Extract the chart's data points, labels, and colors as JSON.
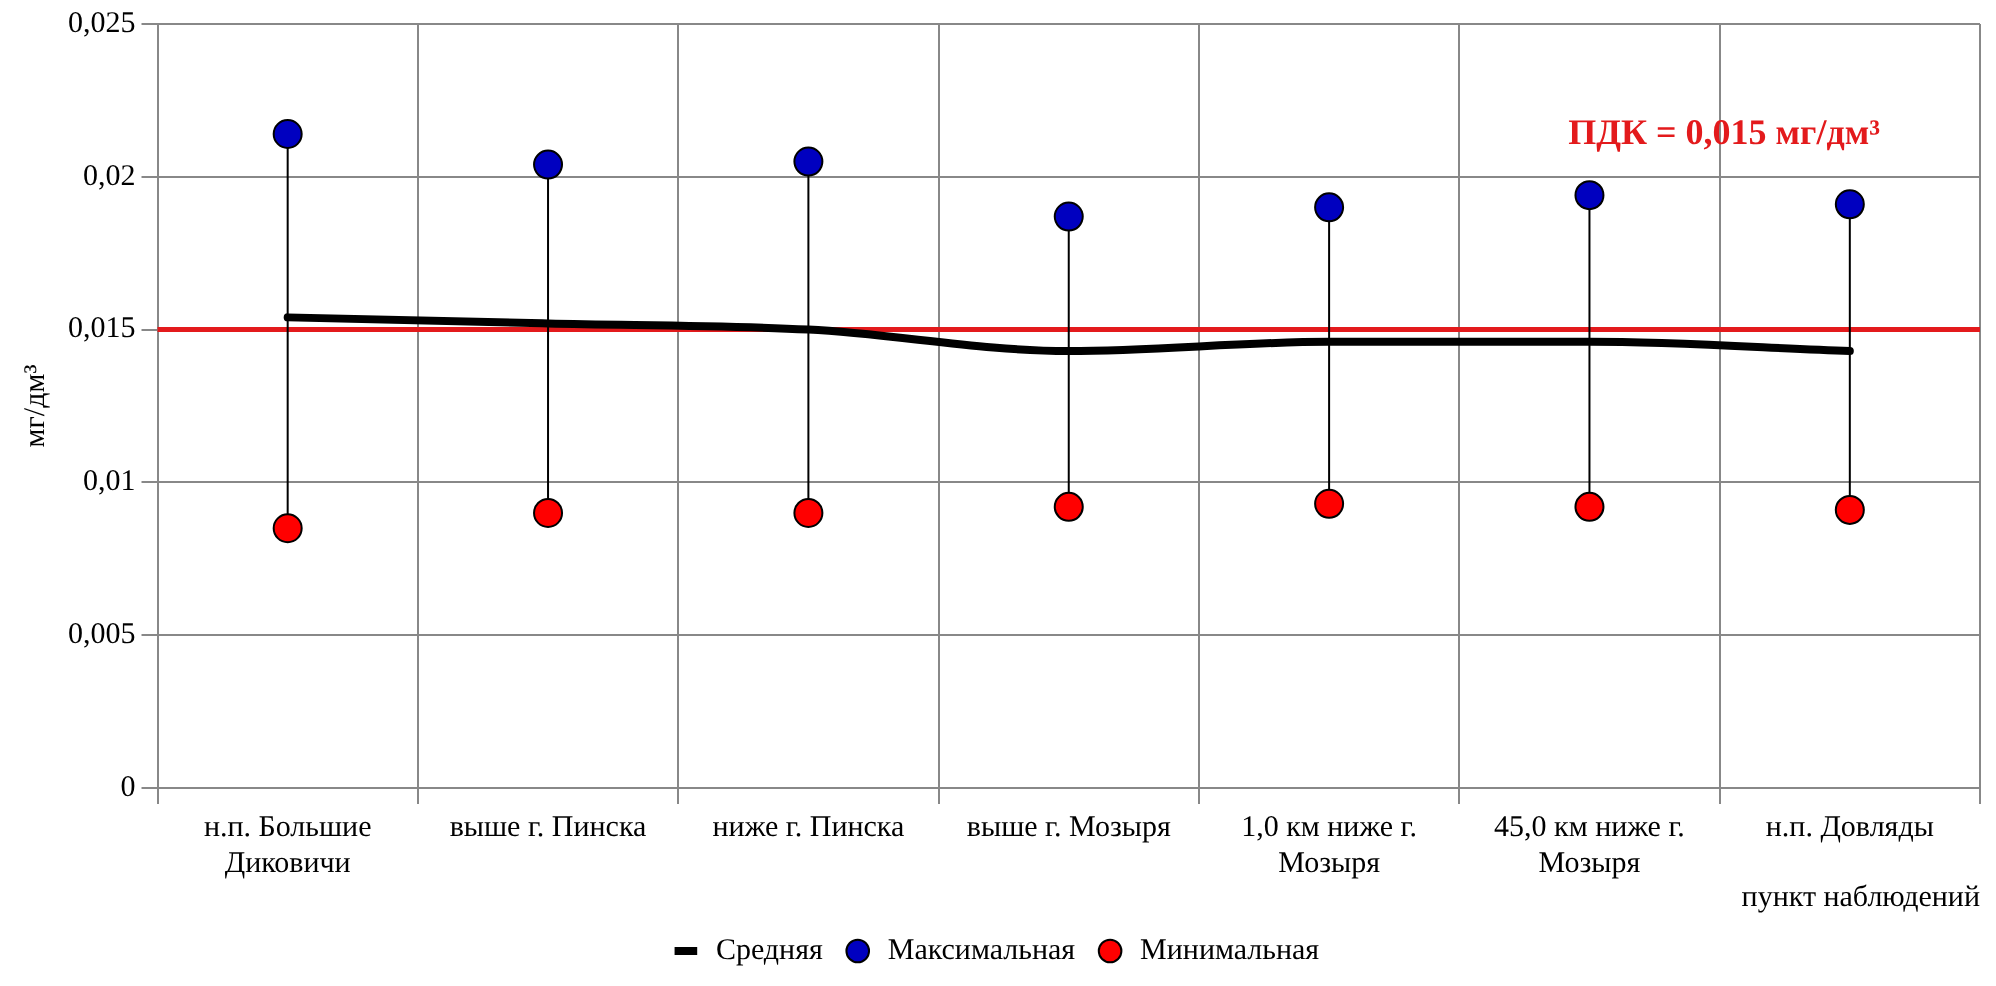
{
  "chart_data": {
    "type": "line",
    "ylabel": "мг/дм³",
    "xlabel": "пункт наблюдений",
    "categories": [
      "н.п. Большие Диковичи",
      "выше г. Пинска",
      "ниже г. Пинска",
      "выше г. Мозыря",
      "1,0 км ниже г. Мозыря",
      "45,0 км ниже г. Мозыря",
      "н.п. Довляды"
    ],
    "series": [
      {
        "name": "Средняя",
        "color": "#000000",
        "marker": "none",
        "values": [
          0.0154,
          0.0152,
          0.015,
          0.0143,
          0.0146,
          0.0146,
          0.0143
        ]
      },
      {
        "name": "Максимальная",
        "type": "scatter",
        "color": "#0000c0",
        "marker": "circle",
        "values": [
          0.0214,
          0.0204,
          0.0205,
          0.0187,
          0.019,
          0.0194,
          0.0191
        ]
      },
      {
        "name": "Минимальная",
        "type": "scatter",
        "color": "#ff0000",
        "marker": "circle",
        "values": [
          0.0085,
          0.009,
          0.009,
          0.0092,
          0.0093,
          0.0092,
          0.0091
        ]
      }
    ],
    "ylim": [
      0,
      0.025
    ],
    "yticks": [
      {
        "value": 0,
        "label": "0"
      },
      {
        "value": 0.005,
        "label": "0,005"
      },
      {
        "value": 0.01,
        "label": "0,01"
      },
      {
        "value": 0.015,
        "label": "0,015"
      },
      {
        "value": 0.02,
        "label": "0,02"
      },
      {
        "value": 0.025,
        "label": "0,025"
      }
    ],
    "ref_lines": [
      {
        "axis": "y",
        "value": 0.015,
        "label": "ПДК = 0,015 мг/дм³",
        "color": "#e31a1c"
      }
    ],
    "grid": true,
    "legend": "bottom"
  }
}
